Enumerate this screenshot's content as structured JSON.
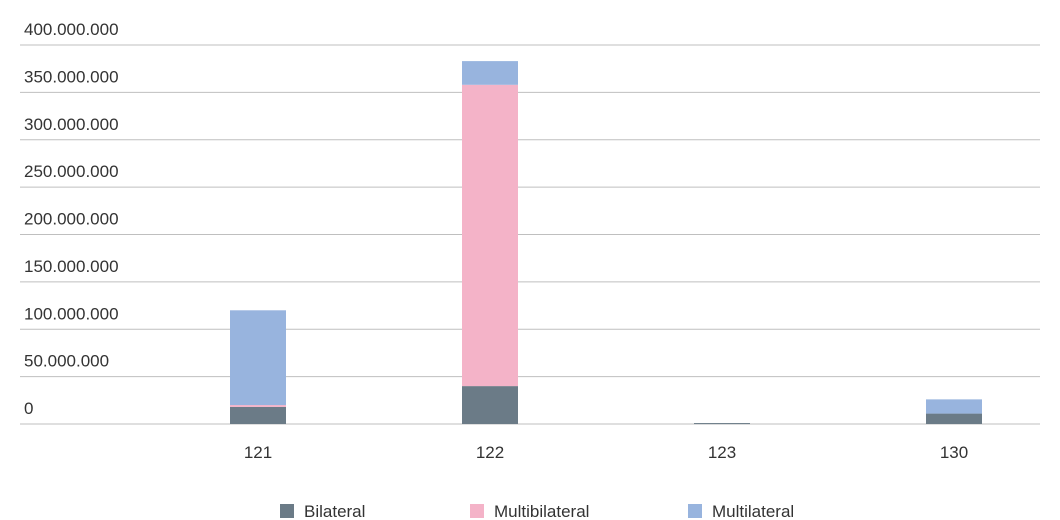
{
  "chart_data": {
    "type": "bar",
    "stacked": true,
    "categories": [
      "121",
      "122",
      "123",
      "130"
    ],
    "series": [
      {
        "name": "Bilateral",
        "color": "#6b7b87",
        "values": [
          18000000,
          40000000,
          1000000,
          11000000
        ]
      },
      {
        "name": "Multibilateral",
        "color": "#f4b3c8",
        "values": [
          2000000,
          318000000,
          0,
          0
        ]
      },
      {
        "name": "Multilateral",
        "color": "#98b4de",
        "values": [
          100000000,
          25000000,
          0,
          15000000
        ]
      }
    ],
    "yticks": [
      "0",
      "50.000.000",
      "100.000.000",
      "150.000.000",
      "200.000.000",
      "250.000.000",
      "300.000.000",
      "350.000.000",
      "400.000.000"
    ],
    "ylim": [
      0,
      400000000
    ],
    "grid": true,
    "legend_position": "bottom"
  }
}
